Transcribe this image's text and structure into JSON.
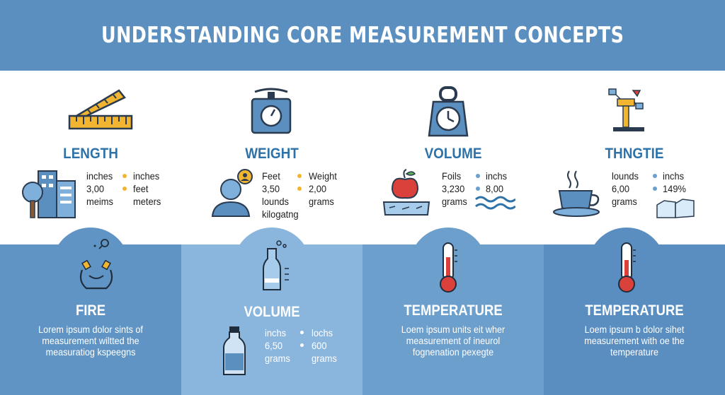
{
  "title": "UNDERSTANDING CORE MEASUREMENT CONCEPTS",
  "top_sections": [
    {
      "title": "LENGTH",
      "icon": "ruler-icon",
      "side_icon": "buildings-tree-icon",
      "left": [
        "inches",
        "3,00",
        "meims"
      ],
      "right": [
        "inches",
        "feet",
        "meters"
      ],
      "dot_color": "#f2b531"
    },
    {
      "title": "WEIGHT",
      "icon": "scale-icon",
      "side_icon": "person-icon",
      "left": [
        "Feet",
        "3,50",
        "lounds",
        "kilogatng"
      ],
      "right": [
        "Weight",
        "2,00",
        "grams"
      ],
      "dot_color": "#f2b531"
    },
    {
      "title": "VOLUME",
      "icon": "weight-clock-icon",
      "side_icon": "apple-icon",
      "left": [
        "Foils",
        "3,230",
        "grams"
      ],
      "right": [
        "inchs",
        "8,00"
      ],
      "dot_color": "#6a9fd0"
    },
    {
      "title": "THNGTIE",
      "icon": "machine-icon",
      "side_icon": "coffee-cup-icon",
      "left": [
        "lounds",
        "6,00",
        "grams"
      ],
      "right": [
        "inchs",
        "149%"
      ],
      "dot_color": "#6a9fd0"
    }
  ],
  "bottom_sections": [
    {
      "title": "FIRE",
      "icon": "hands-icon",
      "desc": [
        "Lorem ipsum dolor sints of",
        "measurement wiltted the",
        "measuratiog kspeegns"
      ]
    },
    {
      "title": "VOLUME",
      "icon": "flask-icon",
      "left": [
        "inchs",
        "6,50",
        "grams"
      ],
      "right": [
        "lochs",
        "600",
        "grams"
      ]
    },
    {
      "title": "TEMPERATURE",
      "icon": "thermometer-icon",
      "desc": [
        "Loem ipsum units eit wher",
        "measurement of ineurol",
        "fognenation pexegte"
      ]
    },
    {
      "title": "TEMPERATURE",
      "icon": "thermometer-icon",
      "desc": [
        "Loem ipsum b dolor sihet",
        "measurement with oe the",
        "temperature"
      ]
    }
  ],
  "colors": {
    "banner": "#5b8fbf",
    "accent_blue": "#2d72a8",
    "accent_yellow": "#f2b531",
    "accent_red": "#d9413a"
  }
}
